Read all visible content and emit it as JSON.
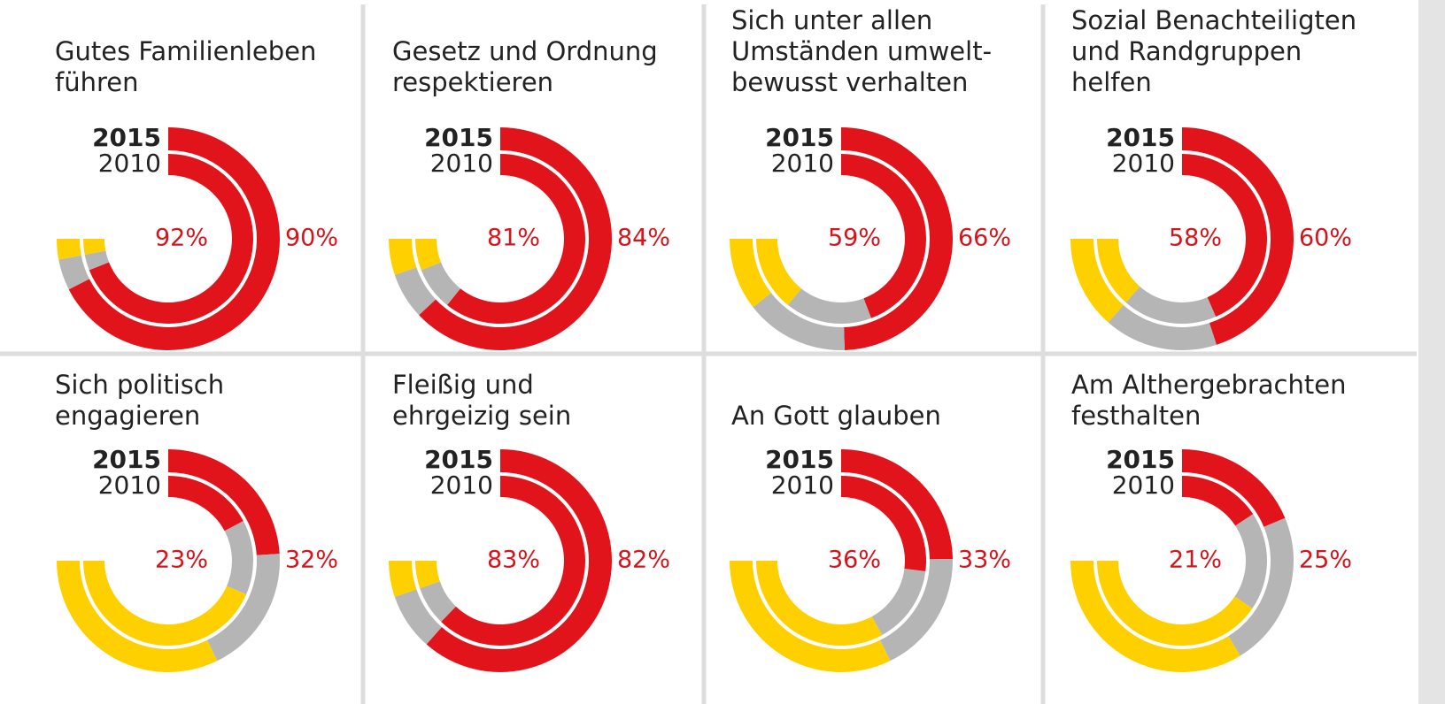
{
  "chart_data": [
    {
      "type": "radial",
      "title": [
        "Gutes Familienleben",
        "führen"
      ],
      "categories": [
        "2015",
        "2010"
      ],
      "ylim": [
        0,
        100
      ],
      "series": [
        {
          "color": "#e2141b",
          "values": [
            90,
            92
          ],
          "value_labels": [
            "90%",
            "92%"
          ]
        },
        {
          "color": "#b5b5b5",
          "values": [
            6,
            4
          ]
        },
        {
          "color": "#ffd000",
          "values": [
            4,
            4
          ]
        }
      ]
    },
    {
      "type": "radial",
      "title": [
        "Gesetz und Ordnung",
        "respektieren"
      ],
      "categories": [
        "2015",
        "2010"
      ],
      "ylim": [
        0,
        100
      ],
      "series": [
        {
          "color": "#e2141b",
          "values": [
            84,
            81
          ],
          "value_labels": [
            "84%",
            "81%"
          ]
        },
        {
          "color": "#b5b5b5",
          "values": [
            9,
            11
          ]
        },
        {
          "color": "#ffd000",
          "values": [
            7,
            8
          ]
        }
      ]
    },
    {
      "type": "radial",
      "title": [
        "Sich unter allen",
        "Umständen umwelt-",
        "bewusst verhalten"
      ],
      "categories": [
        "2015",
        "2010"
      ],
      "ylim": [
        0,
        100
      ],
      "series": [
        {
          "color": "#e2141b",
          "values": [
            66,
            59
          ],
          "value_labels": [
            "66%",
            "59%"
          ]
        },
        {
          "color": "#b5b5b5",
          "values": [
            20,
            22
          ]
        },
        {
          "color": "#ffd000",
          "values": [
            14,
            19
          ]
        }
      ]
    },
    {
      "type": "radial",
      "title": [
        "Sozial Benachteiligten",
        "und Randgruppen",
        "helfen"
      ],
      "categories": [
        "2015",
        "2010"
      ],
      "ylim": [
        0,
        100
      ],
      "series": [
        {
          "color": "#e2141b",
          "values": [
            60,
            58
          ],
          "value_labels": [
            "60%",
            "58%"
          ]
        },
        {
          "color": "#b5b5b5",
          "values": [
            22,
            24
          ]
        },
        {
          "color": "#ffd000",
          "values": [
            18,
            18
          ]
        }
      ]
    },
    {
      "type": "radial",
      "title": [
        "Sich politisch",
        "engagieren"
      ],
      "categories": [
        "2015",
        "2010"
      ],
      "ylim": [
        0,
        100
      ],
      "series": [
        {
          "color": "#e2141b",
          "values": [
            32,
            23
          ],
          "value_labels": [
            "32%",
            "23%"
          ]
        },
        {
          "color": "#b5b5b5",
          "values": [
            25,
            19
          ]
        },
        {
          "color": "#ffd000",
          "values": [
            43,
            58
          ]
        }
      ]
    },
    {
      "type": "radial",
      "title": [
        "Fleißig und",
        "ehrgeizig sein"
      ],
      "categories": [
        "2015",
        "2010"
      ],
      "ylim": [
        0,
        100
      ],
      "series": [
        {
          "color": "#e2141b",
          "values": [
            82,
            83
          ],
          "value_labels": [
            "82%",
            "83%"
          ]
        },
        {
          "color": "#b5b5b5",
          "values": [
            11,
            10
          ]
        },
        {
          "color": "#ffd000",
          "values": [
            7,
            7
          ]
        }
      ]
    },
    {
      "type": "radial",
      "title": [
        "An Gott glauben"
      ],
      "categories": [
        "2015",
        "2010"
      ],
      "ylim": [
        0,
        100
      ],
      "series": [
        {
          "color": "#e2141b",
          "values": [
            33,
            36
          ],
          "value_labels": [
            "33%",
            "36%"
          ]
        },
        {
          "color": "#b5b5b5",
          "values": [
            24,
            20
          ]
        },
        {
          "color": "#ffd000",
          "values": [
            43,
            44
          ]
        }
      ]
    },
    {
      "type": "radial",
      "title": [
        "Am Althergebrachten",
        "festhalten"
      ],
      "categories": [
        "2015",
        "2010"
      ],
      "ylim": [
        0,
        100
      ],
      "series": [
        {
          "color": "#e2141b",
          "values": [
            25,
            21
          ],
          "value_labels": [
            "25%",
            "21%"
          ]
        },
        {
          "color": "#b5b5b5",
          "values": [
            30,
            25
          ]
        },
        {
          "color": "#ffd000",
          "values": [
            45,
            54
          ]
        }
      ]
    }
  ]
}
